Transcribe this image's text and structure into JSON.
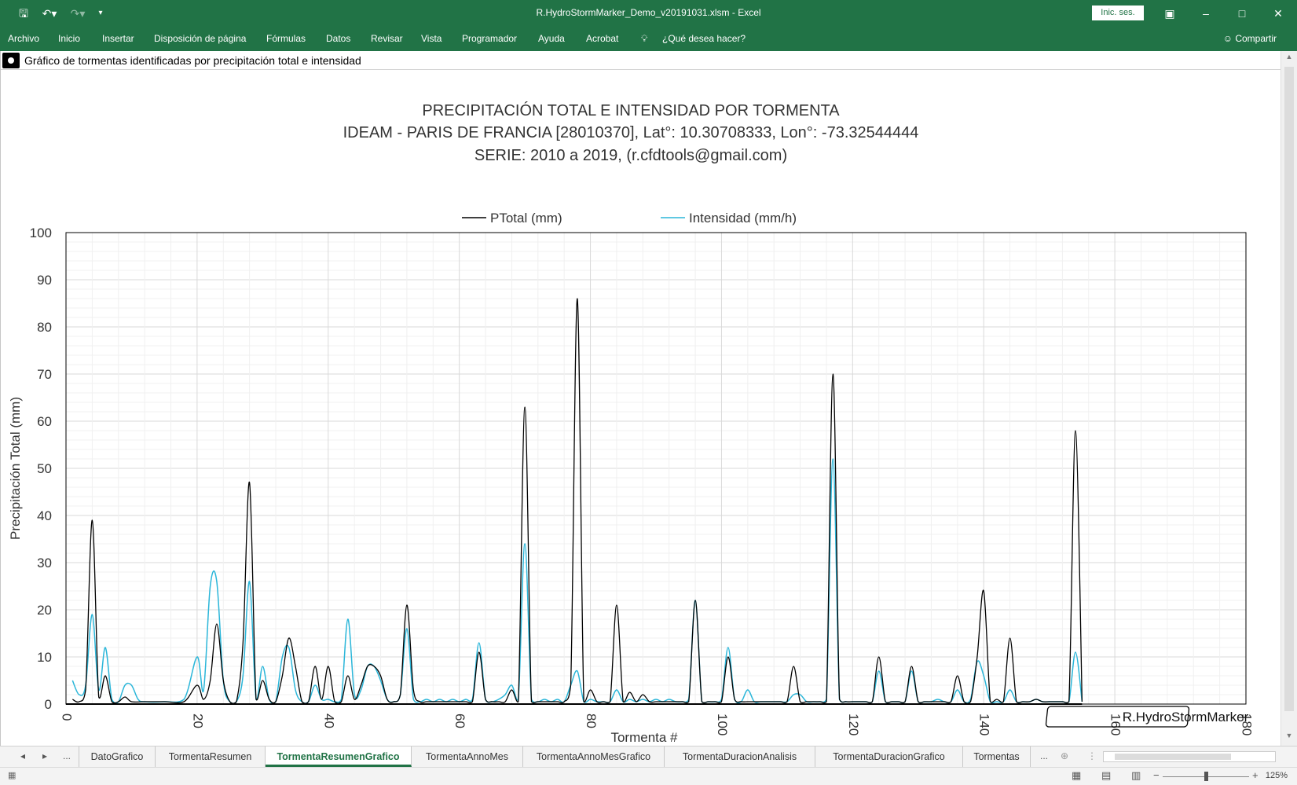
{
  "window": {
    "title": "R.HydroStormMarker_Demo_v20191031.xlsm  -  Excel",
    "signin_label": "Inic. ses."
  },
  "menu": {
    "items": [
      "Archivo",
      "Inicio",
      "Insertar",
      "Disposición de página",
      "Fórmulas",
      "Datos",
      "Revisar",
      "Vista",
      "Programador",
      "Ayuda",
      "Acrobat"
    ],
    "tell_me": "¿Qué desea hacer?",
    "share": "Compartir"
  },
  "chart_header": "Gráfico de tormentas identificadas por precipitación total e intensidad",
  "chart_data": {
    "type": "line",
    "title_lines": [
      "PRECIPITACIÓN TOTAL E INTENSIDAD POR TORMENTA",
      "IDEAM - PARIS DE FRANCIA [28010370], Lat°: 10.30708333, Lon°: -73.32544444",
      "SERIE: 2010 a 2019, (r.cfdtools@gmail.com)"
    ],
    "xlabel": "Tormenta #",
    "ylabel": "Precipitación Total (mm)",
    "xlim": [
      0,
      180
    ],
    "ylim": [
      0,
      100
    ],
    "xticks": [
      0,
      20,
      40,
      60,
      80,
      100,
      120,
      140,
      160,
      180
    ],
    "yticks": [
      0,
      10,
      20,
      30,
      40,
      50,
      60,
      70,
      80,
      90,
      100
    ],
    "grid": true,
    "legend_position": "top",
    "watermark": "R.HydroStormMarker",
    "series": [
      {
        "name": "PTotal (mm)",
        "color": "#000000",
        "points": [
          [
            1,
            1
          ],
          [
            2,
            0.5
          ],
          [
            3,
            3
          ],
          [
            4,
            39
          ],
          [
            5,
            1.5
          ],
          [
            6,
            6
          ],
          [
            7,
            0.5
          ],
          [
            8,
            0.5
          ],
          [
            9,
            1.5
          ],
          [
            10,
            0.5
          ],
          [
            12,
            0.5
          ],
          [
            15,
            0.5
          ],
          [
            18,
            0.5
          ],
          [
            20,
            4
          ],
          [
            21,
            1
          ],
          [
            22,
            5
          ],
          [
            23,
            17
          ],
          [
            24,
            5
          ],
          [
            25,
            0.5
          ],
          [
            26,
            0.5
          ],
          [
            27,
            13
          ],
          [
            28,
            47
          ],
          [
            29,
            1
          ],
          [
            30,
            5
          ],
          [
            31,
            1
          ],
          [
            32,
            0.5
          ],
          [
            33,
            6
          ],
          [
            34,
            14
          ],
          [
            35,
            8
          ],
          [
            36,
            0.5
          ],
          [
            37,
            0.5
          ],
          [
            38,
            8
          ],
          [
            39,
            1
          ],
          [
            40,
            8
          ],
          [
            41,
            0.5
          ],
          [
            42,
            0.5
          ],
          [
            43,
            6
          ],
          [
            44,
            1
          ],
          [
            45,
            4
          ],
          [
            46,
            8
          ],
          [
            47,
            8
          ],
          [
            48,
            6
          ],
          [
            49,
            1
          ],
          [
            50,
            0.5
          ],
          [
            51,
            2
          ],
          [
            52,
            21
          ],
          [
            53,
            3
          ],
          [
            54,
            0.5
          ],
          [
            55,
            0.5
          ],
          [
            56,
            0.5
          ],
          [
            57,
            0.5
          ],
          [
            58,
            0.5
          ],
          [
            59,
            0.5
          ],
          [
            60,
            0.5
          ],
          [
            61,
            0.5
          ],
          [
            62,
            0.5
          ],
          [
            63,
            11
          ],
          [
            64,
            1
          ],
          [
            65,
            0.5
          ],
          [
            66,
            0.5
          ],
          [
            67,
            0.5
          ],
          [
            68,
            3
          ],
          [
            69,
            0.5
          ],
          [
            70,
            63
          ],
          [
            71,
            0.5
          ],
          [
            72,
            0.5
          ],
          [
            73,
            0.5
          ],
          [
            74,
            0.5
          ],
          [
            75,
            0.5
          ],
          [
            76,
            0.5
          ],
          [
            77,
            4
          ],
          [
            78,
            86
          ],
          [
            79,
            0.5
          ],
          [
            80,
            3
          ],
          [
            81,
            0.5
          ],
          [
            82,
            0.5
          ],
          [
            83,
            0.5
          ],
          [
            84,
            21
          ],
          [
            85,
            0.5
          ],
          [
            86,
            2.5
          ],
          [
            87,
            0.5
          ],
          [
            88,
            2
          ],
          [
            89,
            0.5
          ],
          [
            90,
            0.5
          ],
          [
            91,
            0.5
          ],
          [
            92,
            0.5
          ],
          [
            93,
            0.5
          ],
          [
            94,
            0.5
          ],
          [
            95,
            0.5
          ],
          [
            96,
            22
          ],
          [
            97,
            0.5
          ],
          [
            98,
            0.5
          ],
          [
            99,
            0.5
          ],
          [
            100,
            0.5
          ],
          [
            101,
            10
          ],
          [
            102,
            1
          ],
          [
            103,
            0.5
          ],
          [
            104,
            0.5
          ],
          [
            105,
            0.5
          ],
          [
            106,
            0.5
          ],
          [
            107,
            0.5
          ],
          [
            108,
            0.5
          ],
          [
            109,
            0.5
          ],
          [
            110,
            0.5
          ],
          [
            111,
            8
          ],
          [
            112,
            0.5
          ],
          [
            113,
            0.5
          ],
          [
            114,
            0.5
          ],
          [
            115,
            0.5
          ],
          [
            116,
            0.5
          ],
          [
            117,
            70
          ],
          [
            118,
            1
          ],
          [
            119,
            0.5
          ],
          [
            120,
            0.5
          ],
          [
            121,
            0.5
          ],
          [
            122,
            0.5
          ],
          [
            123,
            0.5
          ],
          [
            124,
            10
          ],
          [
            125,
            0.5
          ],
          [
            126,
            0.5
          ],
          [
            127,
            0.5
          ],
          [
            128,
            0.5
          ],
          [
            129,
            8
          ],
          [
            130,
            0.5
          ],
          [
            131,
            0.5
          ],
          [
            132,
            0.5
          ],
          [
            133,
            0.5
          ],
          [
            134,
            0.5
          ],
          [
            135,
            0.5
          ],
          [
            136,
            6
          ],
          [
            137,
            0.5
          ],
          [
            138,
            0.5
          ],
          [
            139,
            10
          ],
          [
            140,
            24
          ],
          [
            141,
            0.5
          ],
          [
            142,
            1
          ],
          [
            143,
            0.5
          ],
          [
            144,
            14
          ],
          [
            145,
            0.5
          ],
          [
            146,
            0.5
          ],
          [
            147,
            0.5
          ],
          [
            148,
            1
          ],
          [
            149,
            0.5
          ],
          [
            150,
            0.5
          ],
          [
            151,
            0.5
          ],
          [
            152,
            0.5
          ],
          [
            153,
            0.5
          ],
          [
            154,
            58
          ],
          [
            155,
            0.5
          ]
        ]
      },
      {
        "name": "Intensidad (mm/h)",
        "color": "#2bb6d9",
        "points": [
          [
            1,
            5
          ],
          [
            2,
            2
          ],
          [
            3,
            4
          ],
          [
            4,
            19
          ],
          [
            5,
            3
          ],
          [
            6,
            12
          ],
          [
            7,
            1
          ],
          [
            8,
            0.5
          ],
          [
            9,
            4
          ],
          [
            10,
            4
          ],
          [
            11,
            1
          ],
          [
            12,
            0.5
          ],
          [
            15,
            0.5
          ],
          [
            18,
            1
          ],
          [
            20,
            10
          ],
          [
            21,
            3
          ],
          [
            22,
            25
          ],
          [
            23,
            26
          ],
          [
            24,
            5
          ],
          [
            25,
            0.5
          ],
          [
            26,
            0.5
          ],
          [
            27,
            6
          ],
          [
            28,
            26
          ],
          [
            29,
            1
          ],
          [
            30,
            8
          ],
          [
            31,
            1
          ],
          [
            32,
            0.5
          ],
          [
            33,
            10
          ],
          [
            34,
            12
          ],
          [
            35,
            3
          ],
          [
            36,
            0.5
          ],
          [
            37,
            0.5
          ],
          [
            38,
            4
          ],
          [
            39,
            1
          ],
          [
            40,
            1
          ],
          [
            41,
            0.5
          ],
          [
            42,
            1
          ],
          [
            43,
            18
          ],
          [
            44,
            2
          ],
          [
            45,
            3
          ],
          [
            46,
            8
          ],
          [
            47,
            8
          ],
          [
            48,
            5
          ],
          [
            49,
            1
          ],
          [
            50,
            0.5
          ],
          [
            51,
            2
          ],
          [
            52,
            16
          ],
          [
            53,
            1
          ],
          [
            54,
            0.5
          ],
          [
            55,
            1
          ],
          [
            56,
            0.5
          ],
          [
            57,
            1
          ],
          [
            58,
            0.5
          ],
          [
            59,
            1
          ],
          [
            60,
            0.5
          ],
          [
            61,
            1
          ],
          [
            62,
            1
          ],
          [
            63,
            13
          ],
          [
            64,
            1
          ],
          [
            65,
            0.5
          ],
          [
            66,
            1
          ],
          [
            67,
            2
          ],
          [
            68,
            4
          ],
          [
            69,
            1
          ],
          [
            70,
            34
          ],
          [
            71,
            1
          ],
          [
            72,
            0.5
          ],
          [
            73,
            1
          ],
          [
            74,
            0.5
          ],
          [
            75,
            1
          ],
          [
            76,
            0.5
          ],
          [
            77,
            4
          ],
          [
            78,
            7
          ],
          [
            79,
            0.5
          ],
          [
            80,
            1
          ],
          [
            81,
            0.5
          ],
          [
            82,
            0.5
          ],
          [
            83,
            0.5
          ],
          [
            84,
            3
          ],
          [
            85,
            0.5
          ],
          [
            86,
            1
          ],
          [
            87,
            0.5
          ],
          [
            88,
            1
          ],
          [
            89,
            0.5
          ],
          [
            90,
            1
          ],
          [
            91,
            0.5
          ],
          [
            92,
            1
          ],
          [
            93,
            0.5
          ],
          [
            94,
            0.5
          ],
          [
            95,
            1
          ],
          [
            96,
            22
          ],
          [
            97,
            0.5
          ],
          [
            98,
            0.5
          ],
          [
            99,
            0.5
          ],
          [
            100,
            1
          ],
          [
            101,
            12
          ],
          [
            102,
            1
          ],
          [
            103,
            0.5
          ],
          [
            104,
            3
          ],
          [
            105,
            0.5
          ],
          [
            106,
            0.5
          ],
          [
            107,
            0.5
          ],
          [
            108,
            0.5
          ],
          [
            109,
            0.5
          ],
          [
            110,
            0.5
          ],
          [
            111,
            2
          ],
          [
            112,
            2
          ],
          [
            113,
            0.5
          ],
          [
            114,
            0.5
          ],
          [
            115,
            0.5
          ],
          [
            116,
            1
          ],
          [
            117,
            52
          ],
          [
            118,
            1
          ],
          [
            119,
            0.5
          ],
          [
            120,
            0.5
          ],
          [
            121,
            0.5
          ],
          [
            122,
            0.5
          ],
          [
            123,
            0.5
          ],
          [
            124,
            7
          ],
          [
            125,
            0.5
          ],
          [
            126,
            0.5
          ],
          [
            127,
            0.5
          ],
          [
            128,
            0.5
          ],
          [
            129,
            7
          ],
          [
            130,
            0.5
          ],
          [
            131,
            0.5
          ],
          [
            132,
            0.5
          ],
          [
            133,
            1
          ],
          [
            134,
            0.5
          ],
          [
            135,
            0.5
          ],
          [
            136,
            3
          ],
          [
            137,
            0.5
          ],
          [
            138,
            1
          ],
          [
            139,
            9
          ],
          [
            140,
            6
          ],
          [
            141,
            0.5
          ],
          [
            142,
            0.5
          ],
          [
            143,
            0.5
          ],
          [
            144,
            3
          ],
          [
            145,
            0.5
          ],
          [
            146,
            0.5
          ],
          [
            147,
            0.5
          ],
          [
            148,
            1
          ],
          [
            149,
            0.5
          ],
          [
            150,
            0.5
          ],
          [
            151,
            0.5
          ],
          [
            152,
            0.5
          ],
          [
            153,
            0.5
          ],
          [
            154,
            11
          ],
          [
            155,
            0.5
          ]
        ]
      }
    ]
  },
  "sheet_tabs": {
    "items": [
      "DatoGrafico",
      "TormentaResumen",
      "TormentaResumenGrafico",
      "TormentaAnnoMes",
      "TormentaAnnoMesGrafico",
      "TormentaDuracionAnalisis",
      "TormentaDuracionGrafico",
      "Tormentas"
    ],
    "active": "TormentaResumenGrafico",
    "ellipsis": "..."
  },
  "status": {
    "zoom": "125%"
  }
}
